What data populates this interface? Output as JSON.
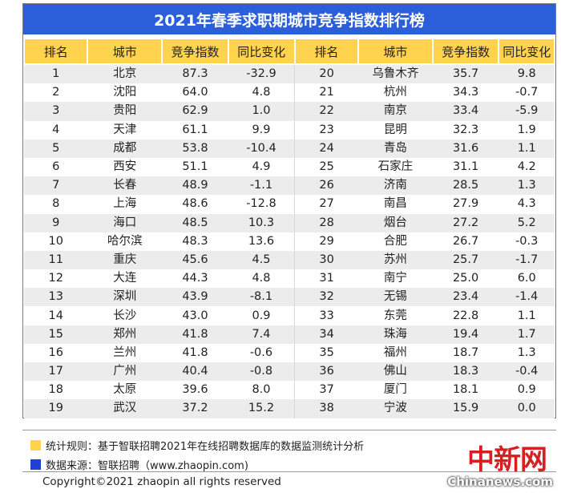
{
  "title": "2021年春季求职期城市竞争指数排行榜",
  "headers": [
    "排名",
    "城市",
    "竞争指数",
    "同比变化",
    "排名",
    "城市",
    "竞争指数",
    "同比变化"
  ],
  "rows": [
    [
      "1",
      "北京",
      "87.3",
      "-32.9",
      "20",
      "乌鲁木齐",
      "35.7",
      "9.8"
    ],
    [
      "2",
      "沈阳",
      "64.0",
      "4.8",
      "21",
      "杭州",
      "34.3",
      "-0.7"
    ],
    [
      "3",
      "贵阳",
      "62.9",
      "1.0",
      "22",
      "南京",
      "33.4",
      "-5.9"
    ],
    [
      "4",
      "天津",
      "61.1",
      "9.9",
      "23",
      "昆明",
      "32.3",
      "1.9"
    ],
    [
      "5",
      "成都",
      "53.8",
      "-10.4",
      "24",
      "青岛",
      "31.6",
      "1.1"
    ],
    [
      "6",
      "西安",
      "51.1",
      "4.9",
      "25",
      "石家庄",
      "31.1",
      "4.2"
    ],
    [
      "7",
      "长春",
      "48.9",
      "-1.1",
      "26",
      "济南",
      "28.5",
      "1.3"
    ],
    [
      "8",
      "上海",
      "48.6",
      "-12.8",
      "27",
      "南昌",
      "27.9",
      "4.3"
    ],
    [
      "9",
      "海口",
      "48.5",
      "10.3",
      "28",
      "烟台",
      "27.2",
      "5.2"
    ],
    [
      "10",
      "哈尔滨",
      "48.3",
      "13.6",
      "29",
      "合肥",
      "26.7",
      "-0.3"
    ],
    [
      "11",
      "重庆",
      "45.6",
      "4.5",
      "30",
      "苏州",
      "25.7",
      "-1.7"
    ],
    [
      "12",
      "大连",
      "44.3",
      "4.8",
      "31",
      "南宁",
      "25.0",
      "6.0"
    ],
    [
      "13",
      "深圳",
      "43.9",
      "-8.1",
      "32",
      "无锡",
      "23.4",
      "-1.4"
    ],
    [
      "14",
      "长沙",
      "43.0",
      "0.9",
      "33",
      "东莞",
      "22.8",
      "1.1"
    ],
    [
      "15",
      "郑州",
      "41.8",
      "7.4",
      "34",
      "珠海",
      "19.4",
      "1.7"
    ],
    [
      "16",
      "兰州",
      "41.8",
      "-0.6",
      "35",
      "福州",
      "18.7",
      "1.3"
    ],
    [
      "17",
      "广州",
      "40.4",
      "-0.8",
      "36",
      "佛山",
      "18.3",
      "-0.4"
    ],
    [
      "18",
      "太原",
      "39.6",
      "8.0",
      "37",
      "厦门",
      "18.1",
      "0.9"
    ],
    [
      "19",
      "武汉",
      "37.2",
      "15.2",
      "38",
      "宁波",
      "15.9",
      "0.0"
    ]
  ],
  "legend": {
    "rule": "统计规则：基于智联招聘2021年在线招聘数据库的数据监测统计分析",
    "source": "数据来源：智联招聘（www.zhaopin.com)"
  },
  "copyright": "Copyright©2021 zhaopin all rights reserved",
  "watermark": {
    "logo": "中新网",
    "site": "Chinanews.com"
  },
  "colors": {
    "title_bg": "#2b5fd9",
    "header_bg": "#ffd34d",
    "rule_swatch": "#ffd34d",
    "source_swatch": "#1f3fd6"
  }
}
